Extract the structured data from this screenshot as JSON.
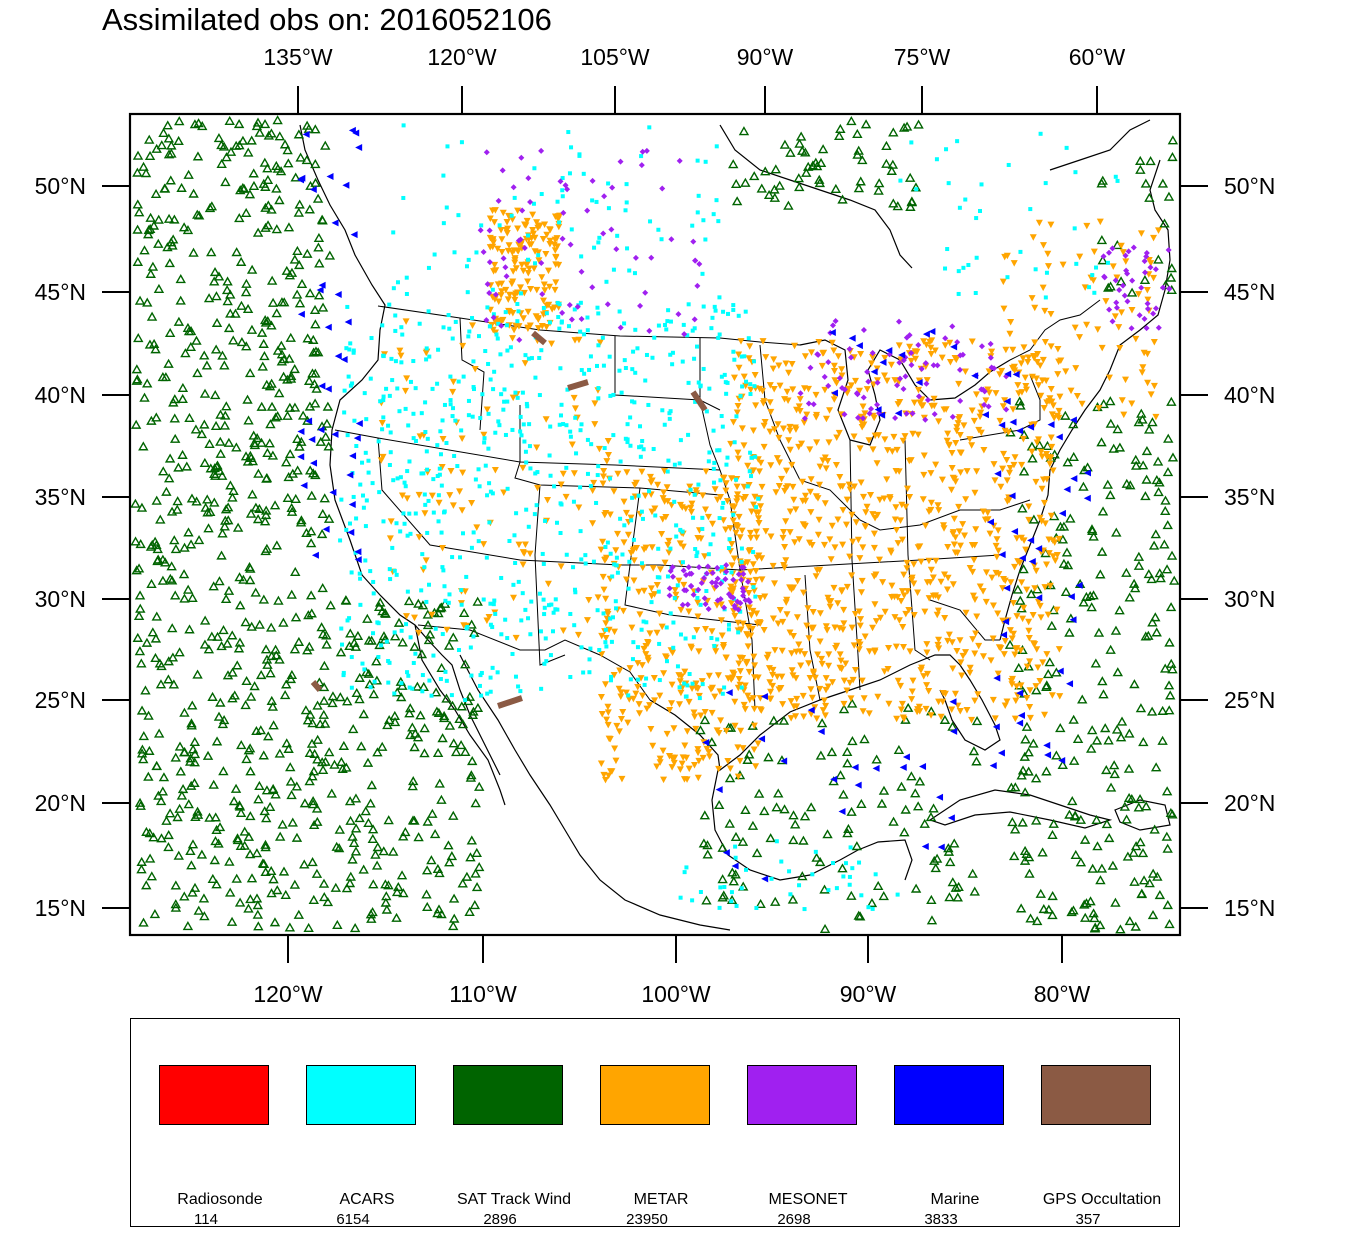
{
  "title": "Assimilated obs on: 2016052106",
  "map": {
    "top_ticks": [
      "135°W",
      "120°W",
      "105°W",
      "90°W",
      "75°W",
      "60°W"
    ],
    "bottom_ticks": [
      "120°W",
      "110°W",
      "100°W",
      "90°W",
      "80°W"
    ],
    "lat_ticks": [
      "50°N",
      "45°N",
      "40°N",
      "35°N",
      "30°N",
      "25°N",
      "20°N",
      "15°N"
    ]
  },
  "legend": [
    {
      "label": "Radiosonde",
      "count": "114",
      "color": "#ff0000"
    },
    {
      "label": "ACARS",
      "count": "6154",
      "color": "#00ffff"
    },
    {
      "label": "SAT Track Wind",
      "count": "2896",
      "color": "#006400"
    },
    {
      "label": "METAR",
      "count": "23950",
      "color": "#ffa500"
    },
    {
      "label": "MESONET",
      "count": "2698",
      "color": "#a020f0"
    },
    {
      "label": "Marine",
      "count": "3833",
      "color": "#0000ff"
    },
    {
      "label": "GPS Occultation",
      "count": "357",
      "color": "#8b5a44"
    }
  ]
}
